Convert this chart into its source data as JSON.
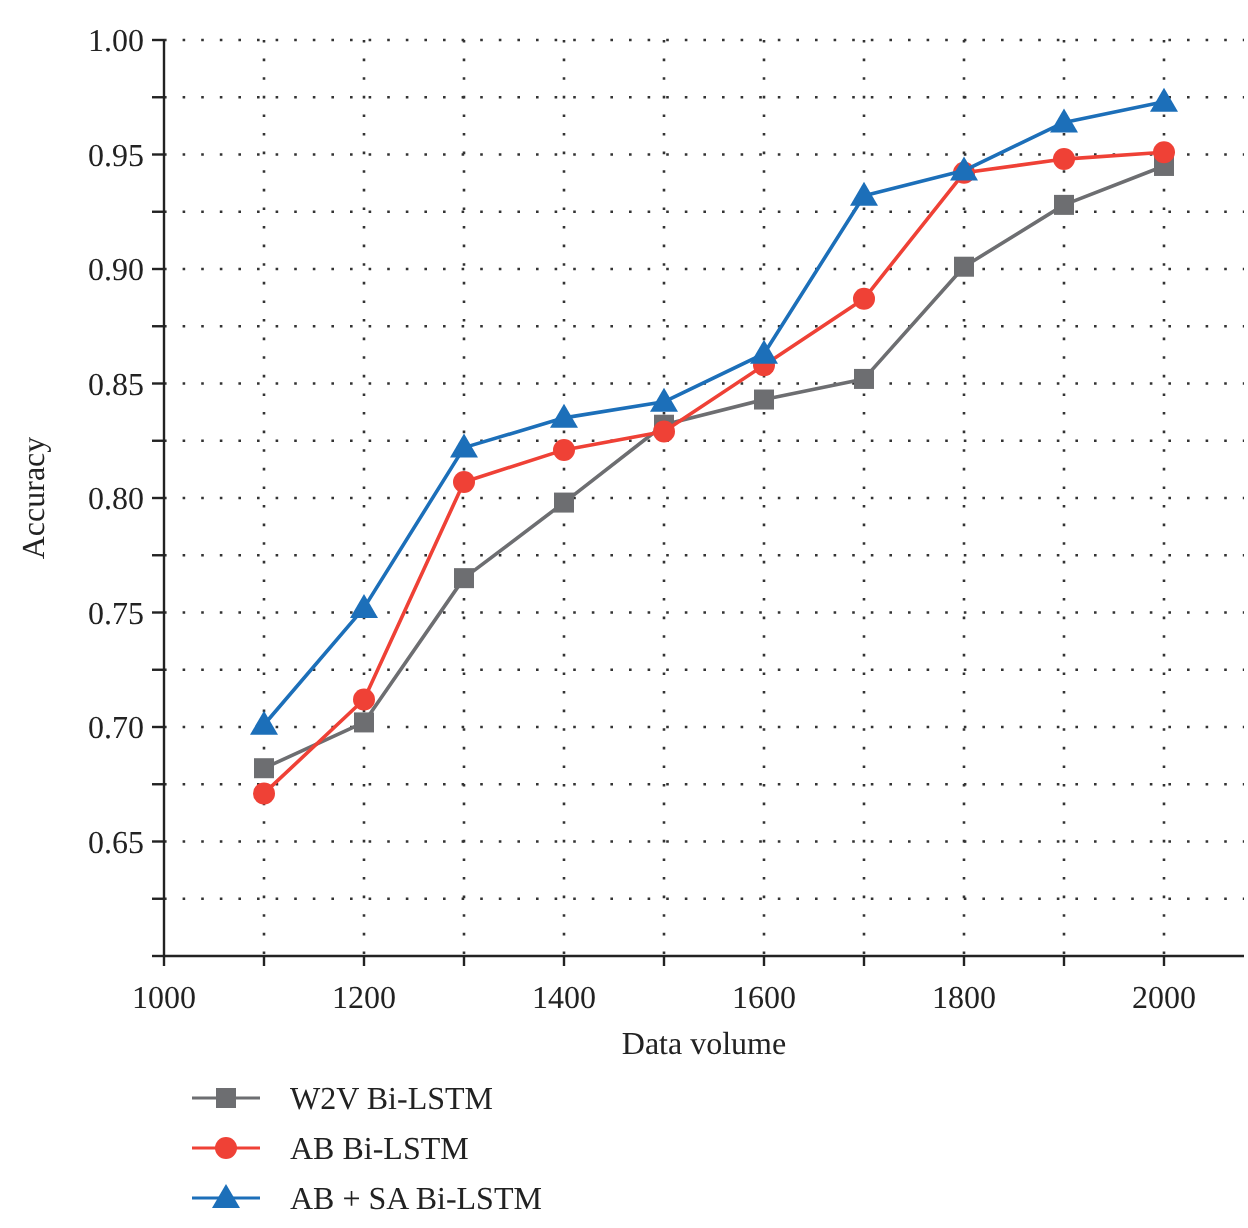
{
  "chart_data": {
    "type": "line",
    "xlabel": "Data volume",
    "ylabel": "Accuracy",
    "x": [
      1100,
      1200,
      1300,
      1400,
      1500,
      1600,
      1700,
      1800,
      1900,
      2000
    ],
    "series": [
      {
        "name": "W2V Bi-LSTM",
        "color": "#6d6e71",
        "marker": "square",
        "values": [
          0.682,
          0.702,
          0.765,
          0.798,
          0.832,
          0.843,
          0.852,
          0.901,
          0.928,
          0.945
        ]
      },
      {
        "name": "AB Bi-LSTM",
        "color": "#ef4136",
        "marker": "circle",
        "values": [
          0.671,
          0.712,
          0.807,
          0.821,
          0.829,
          0.858,
          0.887,
          0.942,
          0.948,
          0.951
        ]
      },
      {
        "name": "AB + SA Bi-LSTM",
        "color": "#1c6fb9",
        "marker": "triangle",
        "values": [
          0.701,
          0.752,
          0.822,
          0.835,
          0.842,
          0.863,
          0.932,
          0.943,
          0.964,
          0.973
        ]
      }
    ],
    "xlim": [
      1000,
      2080
    ],
    "xticks": [
      1000,
      {
        "value": 1100,
        "label": null
      },
      1200,
      {
        "value": 1300,
        "label": null
      },
      1400,
      {
        "value": 1500,
        "label": null
      },
      1600,
      {
        "value": 1700,
        "label": null
      },
      1800,
      {
        "value": 1900,
        "label": null
      },
      2000
    ],
    "ylim": [
      0.6,
      1.0
    ],
    "yticks": [
      {
        "value": 0.6,
        "label": null
      },
      {
        "value": 0.625,
        "label": null
      },
      {
        "value": 0.65,
        "label": "0.65"
      },
      {
        "value": 0.675,
        "label": null
      },
      {
        "value": 0.7,
        "label": "0.70"
      },
      {
        "value": 0.725,
        "label": null
      },
      {
        "value": 0.75,
        "label": "0.75"
      },
      {
        "value": 0.775,
        "label": null
      },
      {
        "value": 0.8,
        "label": "0.80"
      },
      {
        "value": 0.825,
        "label": null
      },
      {
        "value": 0.85,
        "label": "0.85"
      },
      {
        "value": 0.875,
        "label": null
      },
      {
        "value": 0.9,
        "label": "0.90"
      },
      {
        "value": 0.925,
        "label": null
      },
      {
        "value": 0.95,
        "label": "0.95"
      },
      {
        "value": 0.975,
        "label": null
      },
      {
        "value": 1.0,
        "label": "1.00"
      }
    ],
    "grid": true,
    "legend": "bottom",
    "line_style": "solid"
  }
}
